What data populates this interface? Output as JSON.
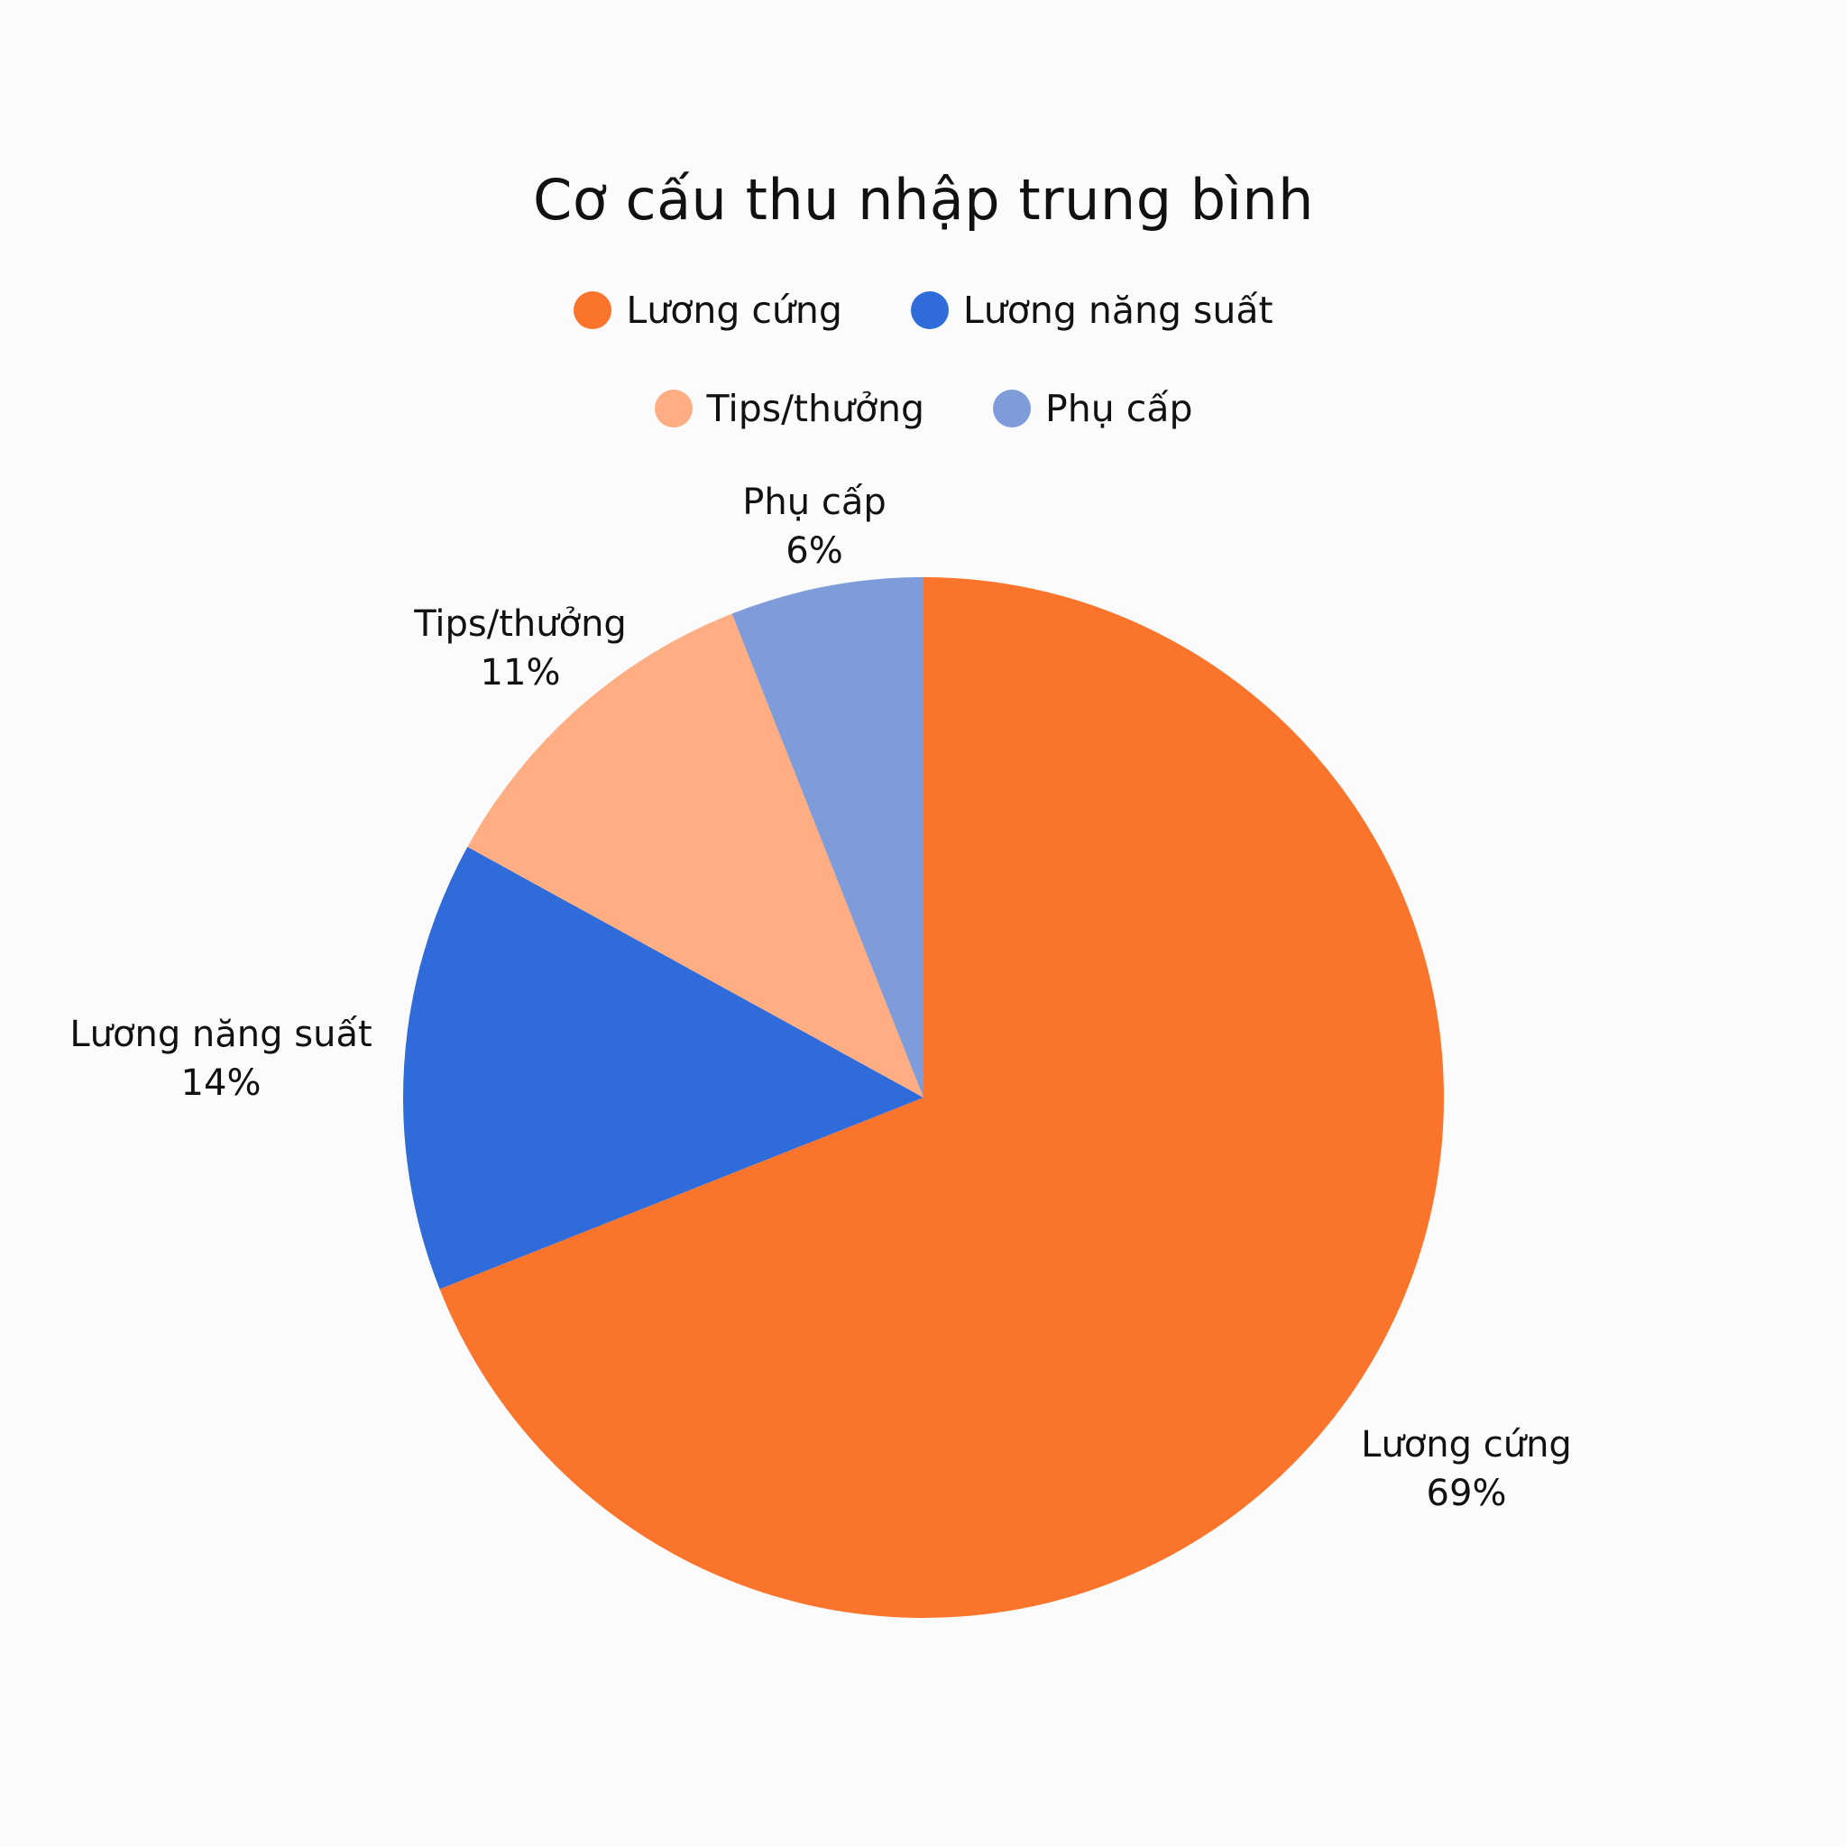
{
  "chart_data": {
    "type": "pie",
    "title": "Cơ cấu thu nhập trung bình",
    "legend_position": "top",
    "slices": [
      {
        "label": "Lương cứng",
        "value": 69,
        "display": "69%",
        "color": "#fb742b"
      },
      {
        "label": "Lương năng suất",
        "value": 14,
        "display": "14%",
        "color": "#306cd9"
      },
      {
        "label": "Tips/thưởng",
        "value": 11,
        "display": "11%",
        "color": "#ffad83"
      },
      {
        "label": "Phụ cấp",
        "value": 6,
        "display": "6%",
        "color": "#7e9cd9"
      }
    ],
    "start": "12 o'clock",
    "direction": "clockwise",
    "background": "#fbfbfb"
  }
}
